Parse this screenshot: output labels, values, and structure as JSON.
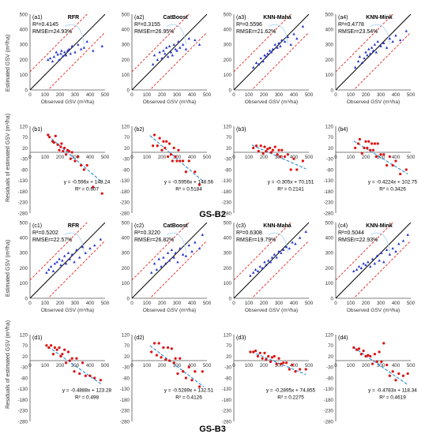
{
  "colors": {
    "axis": "#555555",
    "one_to_one": "#000000",
    "bound": "#e0261f",
    "scatter_blue": "#2233cc",
    "scatter_red": "#dd1111",
    "trend": "#2e8bd6",
    "curve": "#a9d4ee"
  },
  "figure": {
    "group_labels": [
      "GS-B2",
      "GS-B3"
    ],
    "scatter_xlabel": "Observed GSV (m³/ha)",
    "scatter_ylabel": "Estimated GSV (m³/ha)",
    "resid_ylabel": "Residuals of estimated GSV (m³/ha)"
  },
  "chart_data": [
    {
      "id": "a1",
      "type": "scatter",
      "panel": "(a1)",
      "model": "RFR",
      "r2": "R²=0.4145",
      "rmse": "RMSEr=24.93%",
      "xlim": [
        0,
        500
      ],
      "ylim": [
        0,
        500
      ],
      "xticks": [
        "0",
        "100",
        "200",
        "300",
        "400",
        "500"
      ],
      "yticks": [
        "0",
        "100",
        "200",
        "300",
        "400",
        "500"
      ],
      "x": [
        120,
        135,
        150,
        160,
        175,
        185,
        195,
        205,
        210,
        220,
        230,
        240,
        250,
        260,
        270,
        280,
        300,
        320,
        340,
        360,
        380,
        420,
        480
      ],
      "y": [
        200,
        210,
        190,
        220,
        250,
        235,
        200,
        240,
        260,
        225,
        250,
        230,
        260,
        270,
        240,
        290,
        250,
        300,
        270,
        280,
        320,
        260,
        290
      ]
    },
    {
      "id": "a2",
      "type": "scatter",
      "panel": "(a2)",
      "model": "CatBoost",
      "r2": "R²=0.3155",
      "rmse": "RMSEr=26.95%",
      "xlim": [
        0,
        500
      ],
      "ylim": [
        0,
        500
      ],
      "xticks": [
        "0",
        "100",
        "200",
        "300",
        "400",
        "500"
      ],
      "yticks": [
        "0",
        "100",
        "200",
        "300",
        "400",
        "500"
      ],
      "x": [
        140,
        150,
        170,
        185,
        200,
        210,
        220,
        230,
        240,
        250,
        260,
        270,
        280,
        290,
        300,
        310,
        320,
        340,
        360,
        380,
        420,
        450
      ],
      "y": [
        170,
        230,
        200,
        250,
        210,
        260,
        240,
        280,
        220,
        290,
        250,
        230,
        300,
        270,
        260,
        320,
        280,
        300,
        270,
        340,
        330,
        300
      ]
    },
    {
      "id": "a3",
      "type": "scatter",
      "panel": "(a3)",
      "model": "KNN-Maha",
      "r2": "R²=0.5596",
      "rmse": "RMSEr=21.62%",
      "xlim": [
        0,
        500
      ],
      "ylim": [
        0,
        500
      ],
      "xticks": [
        "0",
        "100",
        "200",
        "300",
        "400",
        "500"
      ],
      "yticks": [
        "0",
        "100",
        "200",
        "300",
        "400",
        "500"
      ],
      "x": [
        130,
        150,
        165,
        180,
        195,
        205,
        215,
        225,
        240,
        250,
        260,
        275,
        290,
        300,
        310,
        320,
        340,
        360,
        380,
        400,
        420,
        460
      ],
      "y": [
        150,
        180,
        170,
        210,
        190,
        230,
        220,
        240,
        260,
        250,
        270,
        300,
        280,
        310,
        290,
        330,
        320,
        350,
        300,
        370,
        340,
        420
      ]
    },
    {
      "id": "a4",
      "type": "scatter",
      "panel": "(a4)",
      "model": "KNN-Mink",
      "r2": "R²=0.4778",
      "rmse": "RMSEr=23.54%",
      "xlim": [
        0,
        500
      ],
      "ylim": [
        0,
        500
      ],
      "xticks": [
        "0",
        "100",
        "200",
        "300",
        "400",
        "500"
      ],
      "yticks": [
        "0",
        "100",
        "200",
        "300",
        "400",
        "500"
      ],
      "x": [
        130,
        150,
        160,
        175,
        190,
        200,
        210,
        220,
        230,
        240,
        250,
        260,
        270,
        280,
        300,
        320,
        340,
        360,
        380,
        400,
        430,
        470
      ],
      "y": [
        150,
        190,
        220,
        180,
        210,
        250,
        230,
        270,
        240,
        280,
        260,
        300,
        250,
        320,
        290,
        310,
        280,
        340,
        320,
        360,
        330,
        390
      ]
    },
    {
      "id": "b1",
      "type": "scatter",
      "panel": "(b1)",
      "eq": "y = -0.596x + 148.24",
      "r2": "R² = 0.607",
      "slope": -0.596,
      "intercept": 148.24,
      "xlim": [
        0,
        500
      ],
      "ylim": [
        -280,
        120
      ],
      "xticks": [
        "0",
        "100",
        "200",
        "300",
        "400",
        "500"
      ],
      "yticks": [
        "120",
        "70",
        "20",
        "-30",
        "-80",
        "-130",
        "-180",
        "-230",
        "-280"
      ],
      "x": [
        120,
        130,
        150,
        160,
        170,
        185,
        195,
        205,
        210,
        220,
        230,
        240,
        250,
        260,
        270,
        280,
        300,
        320,
        340,
        360,
        380,
        420,
        480
      ],
      "y": [
        80,
        70,
        50,
        45,
        75,
        35,
        10,
        25,
        40,
        5,
        20,
        -10,
        10,
        5,
        -30,
        0,
        -40,
        -20,
        -60,
        -80,
        -60,
        -160,
        -190
      ]
    },
    {
      "id": "b2",
      "type": "scatter",
      "panel": "(b2)",
      "eq": "y = -0.5956x + 148.56",
      "r2": "R² = 0.5184",
      "slope": -0.5956,
      "intercept": 148.56,
      "xlim": [
        0,
        500
      ],
      "ylim": [
        -280,
        120
      ],
      "xticks": [
        "0",
        "100",
        "200",
        "300",
        "400",
        "500"
      ],
      "yticks": [
        "120",
        "70",
        "20",
        "-30",
        "-80",
        "-130",
        "-180",
        "-230",
        "-280"
      ],
      "x": [
        140,
        150,
        170,
        185,
        200,
        210,
        220,
        230,
        240,
        250,
        260,
        270,
        280,
        290,
        300,
        310,
        320,
        340,
        360,
        380,
        420,
        450
      ],
      "y": [
        30,
        80,
        30,
        65,
        10,
        50,
        20,
        50,
        -20,
        40,
        -10,
        -40,
        20,
        -20,
        -40,
        10,
        -40,
        -40,
        -90,
        -40,
        -90,
        -150
      ]
    },
    {
      "id": "b3",
      "type": "scatter",
      "panel": "(b3)",
      "eq": "y = -0.305x + 70.151",
      "r2": "R² = 0.2141",
      "slope": -0.305,
      "intercept": 70.151,
      "xlim": [
        0,
        500
      ],
      "ylim": [
        -280,
        120
      ],
      "xticks": [
        "0",
        "100",
        "200",
        "300",
        "400",
        "500"
      ],
      "yticks": [
        "120",
        "70",
        "20",
        "-30",
        "-80",
        "-130",
        "-180",
        "-230",
        "-280"
      ],
      "x": [
        130,
        150,
        165,
        180,
        195,
        205,
        215,
        225,
        240,
        250,
        260,
        275,
        290,
        300,
        310,
        320,
        340,
        360,
        380,
        400,
        420,
        460
      ],
      "y": [
        20,
        30,
        5,
        30,
        -5,
        25,
        5,
        15,
        20,
        0,
        10,
        25,
        -10,
        10,
        -20,
        10,
        -20,
        -10,
        -80,
        -30,
        -80,
        -40
      ]
    },
    {
      "id": "b4",
      "type": "scatter",
      "panel": "(b4)",
      "eq": "y = -0.4224x + 102.75",
      "r2": "R² = 0.3426",
      "slope": -0.4224,
      "intercept": 102.75,
      "xlim": [
        0,
        500
      ],
      "ylim": [
        -280,
        120
      ],
      "xticks": [
        "0",
        "100",
        "200",
        "300",
        "400",
        "500"
      ],
      "yticks": [
        "120",
        "70",
        "20",
        "-30",
        "-80",
        "-130",
        "-180",
        "-230",
        "-280"
      ],
      "x": [
        130,
        150,
        160,
        175,
        190,
        200,
        210,
        220,
        230,
        240,
        250,
        260,
        270,
        280,
        300,
        320,
        340,
        360,
        380,
        400,
        430,
        470
      ],
      "y": [
        20,
        40,
        60,
        -5,
        20,
        50,
        20,
        50,
        10,
        40,
        10,
        40,
        -20,
        40,
        -10,
        -10,
        -60,
        -20,
        -60,
        -40,
        -100,
        -80
      ]
    },
    {
      "id": "c1",
      "type": "scatter",
      "panel": "(c1)",
      "model": "RFR",
      "r2": "R²=0.5202",
      "rmse": "RMSEr=22.57%",
      "xlim": [
        0,
        500
      ],
      "ylim": [
        0,
        500
      ],
      "xticks": [
        "0",
        "100",
        "200",
        "300",
        "400",
        "500"
      ],
      "yticks": [
        "0",
        "100",
        "200",
        "300",
        "400",
        "500"
      ],
      "x": [
        110,
        125,
        140,
        155,
        165,
        180,
        195,
        205,
        215,
        230,
        240,
        255,
        265,
        280,
        295,
        310,
        330,
        350,
        370,
        400,
        430,
        470
      ],
      "y": [
        170,
        190,
        210,
        180,
        230,
        240,
        260,
        220,
        250,
        280,
        230,
        300,
        260,
        290,
        240,
        320,
        270,
        340,
        300,
        330,
        350,
        390
      ]
    },
    {
      "id": "c2",
      "type": "scatter",
      "panel": "(c2)",
      "model": "CatBoost",
      "r2": "R²=0.3220",
      "rmse": "RMSEr=26.82%",
      "xlim": [
        0,
        500
      ],
      "ylim": [
        0,
        500
      ],
      "xticks": [
        "0",
        "100",
        "200",
        "300",
        "400",
        "500"
      ],
      "yticks": [
        "0",
        "100",
        "200",
        "300",
        "400",
        "500"
      ],
      "x": [
        130,
        150,
        165,
        180,
        195,
        210,
        225,
        240,
        250,
        265,
        280,
        290,
        305,
        320,
        340,
        360,
        380,
        400,
        420,
        450,
        470
      ],
      "y": [
        170,
        230,
        190,
        260,
        210,
        270,
        230,
        300,
        250,
        320,
        270,
        300,
        240,
        330,
        290,
        280,
        350,
        310,
        370,
        330,
        420
      ]
    },
    {
      "id": "c3",
      "type": "scatter",
      "panel": "(c3)",
      "model": "KNN-Maha",
      "r2": "R²=0.6308",
      "rmse": "RMSEr=19.79%",
      "xlim": [
        0,
        500
      ],
      "ylim": [
        0,
        500
      ],
      "xticks": [
        "0",
        "100",
        "200",
        "300",
        "400",
        "500"
      ],
      "yticks": [
        "0",
        "100",
        "200",
        "300",
        "400",
        "500"
      ],
      "x": [
        110,
        130,
        145,
        160,
        175,
        190,
        205,
        215,
        230,
        245,
        255,
        270,
        285,
        300,
        315,
        330,
        350,
        370,
        390,
        410,
        440,
        480
      ],
      "y": [
        150,
        170,
        190,
        180,
        210,
        200,
        240,
        220,
        250,
        240,
        270,
        290,
        270,
        310,
        300,
        320,
        340,
        330,
        370,
        360,
        400,
        440
      ]
    },
    {
      "id": "c4",
      "type": "scatter",
      "panel": "(c4)",
      "model": "KNN-Mink",
      "r2": "R²=0.5044",
      "rmse": "RMSEr=22.93%",
      "xlim": [
        0,
        500
      ],
      "ylim": [
        0,
        500
      ],
      "xticks": [
        "0",
        "100",
        "200",
        "300",
        "400",
        "500"
      ],
      "yticks": [
        "0",
        "100",
        "200",
        "300",
        "400",
        "500"
      ],
      "x": [
        120,
        140,
        155,
        170,
        185,
        200,
        215,
        230,
        245,
        260,
        275,
        290,
        305,
        320,
        340,
        360,
        380,
        400,
        420,
        450,
        480
      ],
      "y": [
        180,
        190,
        210,
        200,
        230,
        220,
        240,
        210,
        260,
        230,
        280,
        250,
        300,
        240,
        320,
        290,
        330,
        310,
        360,
        380,
        420
      ]
    },
    {
      "id": "d1",
      "type": "scatter",
      "panel": "(d1)",
      "eq": "y = -0.4888x + 123.28",
      "r2": "R² = 0.498",
      "slope": -0.4888,
      "intercept": 123.28,
      "xlim": [
        0,
        500
      ],
      "ylim": [
        -280,
        120
      ],
      "xticks": [
        "0",
        "100",
        "200",
        "300",
        "400",
        "500"
      ],
      "yticks": [
        "120",
        "70",
        "20",
        "-30",
        "-80",
        "-130",
        "-180",
        "-230",
        "-280"
      ],
      "x": [
        110,
        125,
        140,
        155,
        165,
        180,
        195,
        205,
        215,
        230,
        240,
        255,
        265,
        280,
        295,
        310,
        330,
        350,
        370,
        400,
        430,
        470
      ],
      "y": [
        70,
        60,
        70,
        30,
        60,
        50,
        60,
        20,
        30,
        50,
        -10,
        40,
        0,
        10,
        -50,
        10,
        -60,
        -10,
        -70,
        -70,
        -80,
        -90
      ]
    },
    {
      "id": "d2",
      "type": "scatter",
      "panel": "(d2)",
      "eq": "y = -0.5289x + 132.51",
      "r2": "R² = 0.4126",
      "slope": -0.5289,
      "intercept": 132.51,
      "xlim": [
        0,
        500
      ],
      "ylim": [
        -280,
        120
      ],
      "xticks": [
        "0",
        "100",
        "200",
        "300",
        "400",
        "500"
      ],
      "yticks": [
        "120",
        "70",
        "20",
        "-30",
        "-80",
        "-130",
        "-180",
        "-230",
        "-280"
      ],
      "x": [
        130,
        150,
        165,
        180,
        195,
        210,
        225,
        240,
        250,
        265,
        280,
        290,
        305,
        320,
        340,
        360,
        380,
        400,
        420,
        450,
        470
      ],
      "y": [
        40,
        80,
        25,
        80,
        15,
        60,
        5,
        60,
        0,
        55,
        -10,
        10,
        -60,
        10,
        -50,
        -80,
        -30,
        -90,
        -50,
        -120,
        -50
      ]
    },
    {
      "id": "d3",
      "type": "scatter",
      "panel": "(d3)",
      "eq": "y = -0.2895x + 74.855",
      "r2": "R² = 0.2275",
      "slope": -0.2895,
      "intercept": 74.855,
      "xlim": [
        0,
        500
      ],
      "ylim": [
        -280,
        120
      ],
      "xticks": [
        "0",
        "100",
        "200",
        "300",
        "400",
        "500"
      ],
      "yticks": [
        "120",
        "70",
        "20",
        "-30",
        "-80",
        "-130",
        "-180",
        "-230",
        "-280"
      ],
      "x": [
        110,
        130,
        145,
        160,
        175,
        190,
        205,
        215,
        230,
        245,
        255,
        270,
        285,
        300,
        315,
        330,
        350,
        370,
        390,
        410,
        440,
        480
      ],
      "y": [
        40,
        40,
        45,
        20,
        35,
        10,
        35,
        5,
        20,
        -5,
        15,
        20,
        -15,
        10,
        -15,
        -10,
        -10,
        -40,
        -20,
        -50,
        -40,
        -40
      ]
    },
    {
      "id": "d4",
      "type": "scatter",
      "panel": "(d4)",
      "eq": "y = -0.4783x + 118.34",
      "r2": "R² = 0.4619",
      "slope": -0.4783,
      "intercept": 118.34,
      "xlim": [
        0,
        500
      ],
      "ylim": [
        -280,
        120
      ],
      "xticks": [
        "0",
        "100",
        "200",
        "300",
        "400",
        "500"
      ],
      "yticks": [
        "120",
        "70",
        "20",
        "-30",
        "-80",
        "-130",
        "-180",
        "-230",
        "-280"
      ],
      "x": [
        120,
        140,
        155,
        170,
        185,
        200,
        215,
        230,
        245,
        260,
        275,
        290,
        305,
        320,
        340,
        360,
        380,
        400,
        420,
        450,
        480
      ],
      "y": [
        60,
        50,
        55,
        30,
        45,
        20,
        25,
        20,
        -15,
        30,
        -5,
        40,
        -5,
        80,
        -20,
        -70,
        -50,
        -90,
        -60,
        -70,
        -60
      ]
    }
  ]
}
